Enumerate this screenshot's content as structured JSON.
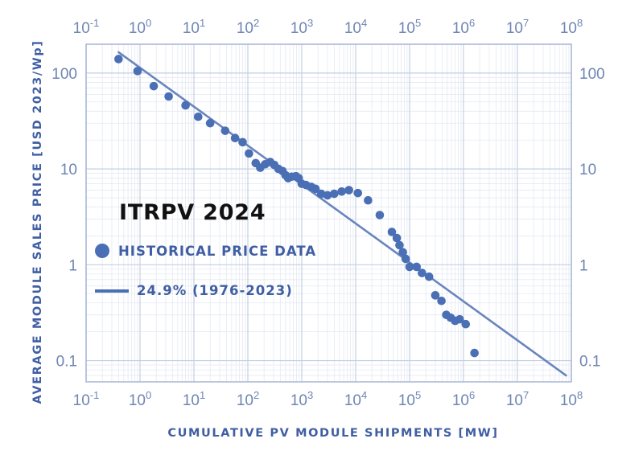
{
  "chart_data": {
    "type": "scatter",
    "title": "ITRPV 2024",
    "xlabel": "CUMULATIVE PV MODULE SHIPMENTS [MW]",
    "ylabel": "AVERAGE MODULE SALES PRICE [USD 2023/Wp]",
    "x_scale": "log",
    "y_scale": "log",
    "xlim": [
      0.1,
      100000000
    ],
    "ylim": [
      0.06,
      200
    ],
    "grid": true,
    "x_ticks": [
      {
        "value": 0.1,
        "base": "10",
        "exp": "-1"
      },
      {
        "value": 1,
        "base": "10",
        "exp": "0"
      },
      {
        "value": 10,
        "base": "10",
        "exp": "1"
      },
      {
        "value": 100,
        "base": "10",
        "exp": "2"
      },
      {
        "value": 1000,
        "base": "10",
        "exp": "3"
      },
      {
        "value": 10000,
        "base": "10",
        "exp": "4"
      },
      {
        "value": 100000,
        "base": "10",
        "exp": "5"
      },
      {
        "value": 1000000,
        "base": "10",
        "exp": "6"
      },
      {
        "value": 10000000,
        "base": "10",
        "exp": "7"
      },
      {
        "value": 100000000,
        "base": "10",
        "exp": "8"
      }
    ],
    "y_ticks": [
      {
        "value": 0.1,
        "label": "0.1"
      },
      {
        "value": 1,
        "label": "1"
      },
      {
        "value": 10,
        "label": "10"
      },
      {
        "value": 100,
        "label": "100"
      }
    ],
    "legend": {
      "placement": "left-middle",
      "scatter_label": "HISTORICAL PRICE DATA",
      "line_label": "24.9%  (1976-2023)"
    },
    "series": [
      {
        "name": "HISTORICAL PRICE DATA",
        "kind": "scatter",
        "color": "#4a6fb5",
        "points": [
          [
            0.4,
            140
          ],
          [
            0.9,
            105
          ],
          [
            1.8,
            73
          ],
          [
            3.4,
            57
          ],
          [
            7,
            46
          ],
          [
            12,
            35
          ],
          [
            20,
            30
          ],
          [
            38,
            25
          ],
          [
            58,
            21
          ],
          [
            80,
            19
          ],
          [
            105,
            14.5
          ],
          [
            140,
            11.5
          ],
          [
            170,
            10.3
          ],
          [
            210,
            11.2
          ],
          [
            260,
            11.8
          ],
          [
            310,
            11
          ],
          [
            370,
            10
          ],
          [
            440,
            9.5
          ],
          [
            500,
            8.6
          ],
          [
            560,
            8
          ],
          [
            650,
            8.3
          ],
          [
            780,
            8.4
          ],
          [
            880,
            8
          ],
          [
            1000,
            7
          ],
          [
            1200,
            6.8
          ],
          [
            1500,
            6.5
          ],
          [
            1800,
            6.2
          ],
          [
            2300,
            5.5
          ],
          [
            3000,
            5.3
          ],
          [
            4000,
            5.5
          ],
          [
            5500,
            5.8
          ],
          [
            7500,
            6
          ],
          [
            11000,
            5.6
          ],
          [
            17000,
            4.7
          ],
          [
            28000,
            3.3
          ],
          [
            47000,
            2.2
          ],
          [
            58000,
            1.9
          ],
          [
            65000,
            1.6
          ],
          [
            75000,
            1.35
          ],
          [
            85000,
            1.15
          ],
          [
            100000,
            0.95
          ],
          [
            135000,
            0.95
          ],
          [
            170000,
            0.82
          ],
          [
            230000,
            0.75
          ],
          [
            300000,
            0.48
          ],
          [
            390000,
            0.42
          ],
          [
            480000,
            0.3
          ],
          [
            580000,
            0.28
          ],
          [
            700000,
            0.26
          ],
          [
            850000,
            0.27
          ],
          [
            1100000,
            0.24
          ],
          [
            1600000,
            0.12
          ]
        ]
      },
      {
        "name": "24.9%  (1976-2023)",
        "kind": "line",
        "color": "#6a85bd",
        "points": [
          [
            0.4,
            165
          ],
          [
            80000000,
            0.07
          ]
        ]
      }
    ]
  }
}
